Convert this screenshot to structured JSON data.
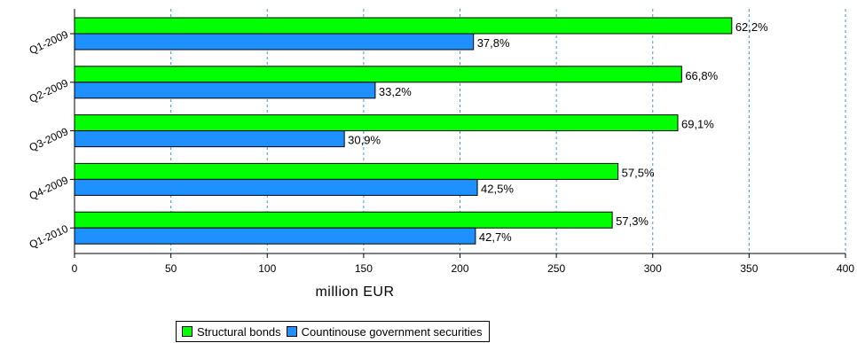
{
  "chart_data": {
    "type": "bar",
    "orientation": "horizontal",
    "categories": [
      "Q1-2009",
      "Q2-2009",
      "Q3-2009",
      "Q4-2009",
      "Q1-2010"
    ],
    "series": [
      {
        "name": "Structural bonds",
        "color": "#00ff00",
        "values": [
          341,
          315,
          313,
          282,
          279
        ],
        "labels": [
          "62,2%",
          "66,8%",
          "69,1%",
          "57,5%",
          "57,3%"
        ]
      },
      {
        "name": "Countinouse government securities",
        "color": "#1e90ff",
        "values": [
          207,
          156,
          140,
          209,
          208
        ],
        "labels": [
          "37,8%",
          "33,2%",
          "30,9%",
          "42,5%",
          "42,7%"
        ]
      }
    ],
    "xlabel": "million EUR",
    "xlim": [
      0,
      400
    ],
    "xticks": [
      0,
      50,
      100,
      150,
      200,
      250,
      300,
      350,
      400
    ],
    "grid": "vertical dashed",
    "legend_position": "bottom"
  }
}
